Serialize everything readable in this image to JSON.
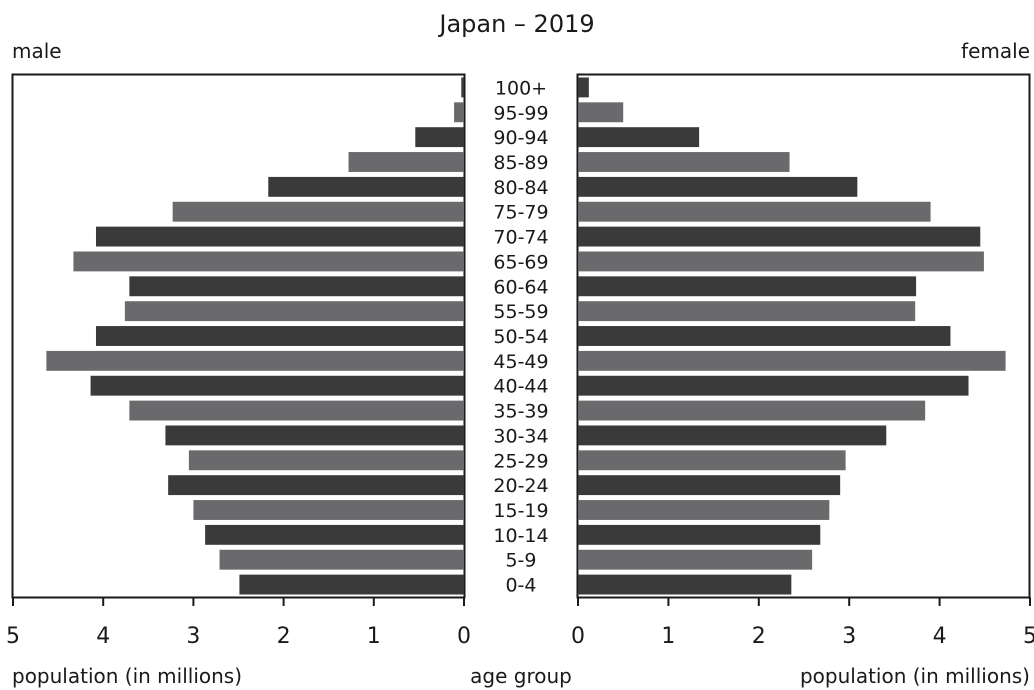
{
  "chart_data": {
    "type": "bar",
    "orientation": "horizontal",
    "title": "Japan – 2019",
    "left_label": "male",
    "right_label": "female",
    "center_label": "age group",
    "left_axis_label": "population (in millions)",
    "right_axis_label": "population (in millions)",
    "xlim": [
      0,
      5
    ],
    "x_ticks": [
      "0",
      "1",
      "2",
      "3",
      "4",
      "5"
    ],
    "categories": [
      "100+",
      "95-99",
      "90-94",
      "85-89",
      "80-84",
      "75-79",
      "70-74",
      "65-69",
      "60-64",
      "55-59",
      "50-54",
      "45-49",
      "40-44",
      "35-39",
      "30-34",
      "25-29",
      "20-24",
      "15-19",
      "10-14",
      "5-9",
      "0-4"
    ],
    "series": [
      {
        "name": "male",
        "values": [
          0.03,
          0.11,
          0.54,
          1.28,
          2.17,
          3.23,
          4.08,
          4.33,
          3.71,
          3.76,
          4.08,
          4.63,
          4.14,
          3.71,
          3.31,
          3.05,
          3.28,
          3.0,
          2.87,
          2.71,
          2.49
        ]
      },
      {
        "name": "female",
        "values": [
          0.12,
          0.5,
          1.34,
          2.34,
          3.09,
          3.9,
          4.45,
          4.49,
          3.74,
          3.73,
          4.12,
          4.73,
          4.32,
          3.84,
          3.41,
          2.96,
          2.9,
          2.78,
          2.68,
          2.59,
          2.36
        ]
      }
    ],
    "bar_colors": [
      "#3a3a3a",
      "#6a6a6c"
    ],
    "grid": false
  }
}
